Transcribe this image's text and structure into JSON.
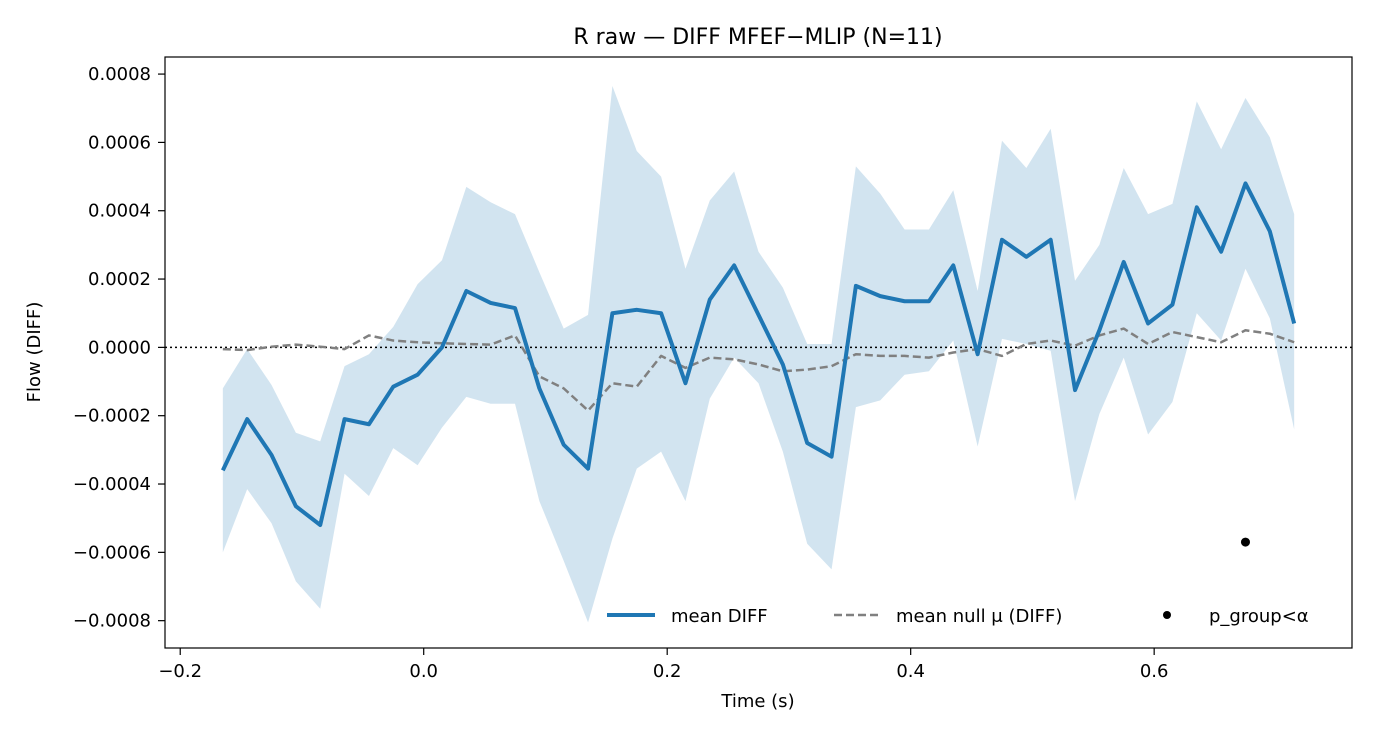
{
  "chart_data": {
    "type": "line",
    "title": "R raw — DIFF MFEF−MLIP (N=11)",
    "xlabel": "Time (s)",
    "ylabel": "Flow (DIFF)",
    "xlim": [
      -0.2125,
      0.7625
    ],
    "ylim": [
      -0.00088,
      0.00085
    ],
    "x_ticks": [
      {
        "value": -0.2,
        "label": "−0.2"
      },
      {
        "value": 0.0,
        "label": "0.0"
      },
      {
        "value": 0.2,
        "label": "0.2"
      },
      {
        "value": 0.4,
        "label": "0.4"
      },
      {
        "value": 0.6,
        "label": "0.6"
      }
    ],
    "y_ticks": [
      {
        "value": -0.0008,
        "label": "−0.0008"
      },
      {
        "value": -0.0006,
        "label": "−0.0006"
      },
      {
        "value": -0.0004,
        "label": "−0.0004"
      },
      {
        "value": -0.0002,
        "label": "−0.0002"
      },
      {
        "value": 0.0,
        "label": "0.0000"
      },
      {
        "value": 0.0002,
        "label": "0.0002"
      },
      {
        "value": 0.0004,
        "label": "0.0004"
      },
      {
        "value": 0.0006,
        "label": "0.0006"
      },
      {
        "value": 0.0008,
        "label": "0.0008"
      }
    ],
    "grid": false,
    "legend_position": "lower-right",
    "zero_line": true,
    "x": [
      -0.165,
      -0.145,
      -0.125,
      -0.105,
      -0.085,
      -0.065,
      -0.045,
      -0.025,
      -0.005,
      0.015,
      0.035,
      0.055,
      0.075,
      0.095,
      0.115,
      0.135,
      0.155,
      0.175,
      0.195,
      0.215,
      0.235,
      0.255,
      0.275,
      0.295,
      0.315,
      0.335,
      0.355,
      0.375,
      0.395,
      0.415,
      0.435,
      0.455,
      0.475,
      0.495,
      0.515,
      0.535,
      0.555,
      0.575,
      0.595,
      0.615,
      0.635,
      0.655,
      0.675,
      0.695,
      0.715
    ],
    "series": [
      {
        "name": "mean DIFF",
        "color": "#1f77b4",
        "style": "solid",
        "values": [
          -0.00036,
          -0.00021,
          -0.000315,
          -0.000465,
          -0.00052,
          -0.00021,
          -0.000225,
          -0.000115,
          -8e-05,
          0.0,
          0.000165,
          0.00013,
          0.000115,
          -0.00012,
          -0.000285,
          -0.000355,
          0.0001,
          0.00011,
          0.0001,
          -0.000105,
          0.00014,
          0.00024,
          9.5e-05,
          -5e-05,
          -0.00028,
          -0.00032,
          0.00018,
          0.00015,
          0.000135,
          0.000135,
          0.00024,
          -2e-05,
          0.000315,
          0.000265,
          0.000315,
          -0.000125,
          5e-05,
          0.00025,
          7e-05,
          0.000125,
          0.00041,
          0.00028,
          0.00048,
          0.00034,
          7e-05
        ]
      },
      {
        "name": "mean null μ (DIFF)",
        "color": "#808080",
        "style": "dashed",
        "values": [
          -5e-06,
          -8e-06,
          2e-06,
          8e-06,
          2e-06,
          -5e-06,
          3.5e-05,
          2e-05,
          1.5e-05,
          1.2e-05,
          1e-05,
          8e-06,
          3.5e-05,
          -8.5e-05,
          -0.00012,
          -0.000185,
          -0.000105,
          -0.000115,
          -2.5e-05,
          -6e-05,
          -3e-05,
          -3.5e-05,
          -5e-05,
          -7e-05,
          -6.5e-05,
          -5.5e-05,
          -2e-05,
          -2.5e-05,
          -2.5e-05,
          -3e-05,
          -1.5e-05,
          -5e-06,
          -2.5e-05,
          1e-05,
          2e-05,
          5e-06,
          3.5e-05,
          5.5e-05,
          1e-05,
          4.5e-05,
          3e-05,
          1.5e-05,
          5e-05,
          4e-05,
          1.5e-05
        ]
      }
    ],
    "band": {
      "color": "#1f77b4",
      "opacity": 0.2,
      "upper": [
        -0.00012,
        -5e-06,
        -0.00011,
        -0.00025,
        -0.000275,
        -5.5e-05,
        -2e-05,
        6e-05,
        0.000185,
        0.000255,
        0.00047,
        0.000425,
        0.00039,
        0.00022,
        5.5e-05,
        9.5e-05,
        0.000765,
        0.000575,
        0.0005,
        0.00023,
        0.00043,
        0.000515,
        0.00028,
        0.000175,
        1e-05,
        1e-05,
        0.00053,
        0.00045,
        0.000345,
        0.000345,
        0.00046,
        0.000165,
        0.000605,
        0.000525,
        0.00064,
        0.000195,
        0.0003,
        0.000525,
        0.00039,
        0.00042,
        0.00072,
        0.00058,
        0.00073,
        0.000615,
        0.00039
      ],
      "lower": [
        -0.0006,
        -0.000415,
        -0.000515,
        -0.000685,
        -0.000765,
        -0.00037,
        -0.000435,
        -0.000295,
        -0.000345,
        -0.000235,
        -0.000145,
        -0.000165,
        -0.000165,
        -0.00045,
        -0.000625,
        -0.000805,
        -0.00056,
        -0.000355,
        -0.000305,
        -0.00045,
        -0.00015,
        -3e-05,
        -0.000105,
        -0.000305,
        -0.000575,
        -0.00065,
        -0.000175,
        -0.000155,
        -8e-05,
        -7e-05,
        2e-05,
        -0.00029,
        2.5e-05,
        1e-05,
        -1e-05,
        -0.00045,
        -0.000195,
        -3e-05,
        -0.000255,
        -0.00016,
        0.0001,
        2e-05,
        0.00023,
        8.5e-05,
        -0.00024
      ]
    },
    "significant_points": {
      "name": "p_group<α",
      "color": "#000000",
      "points": [
        {
          "x": 0.675,
          "y": -0.00057
        }
      ]
    }
  }
}
